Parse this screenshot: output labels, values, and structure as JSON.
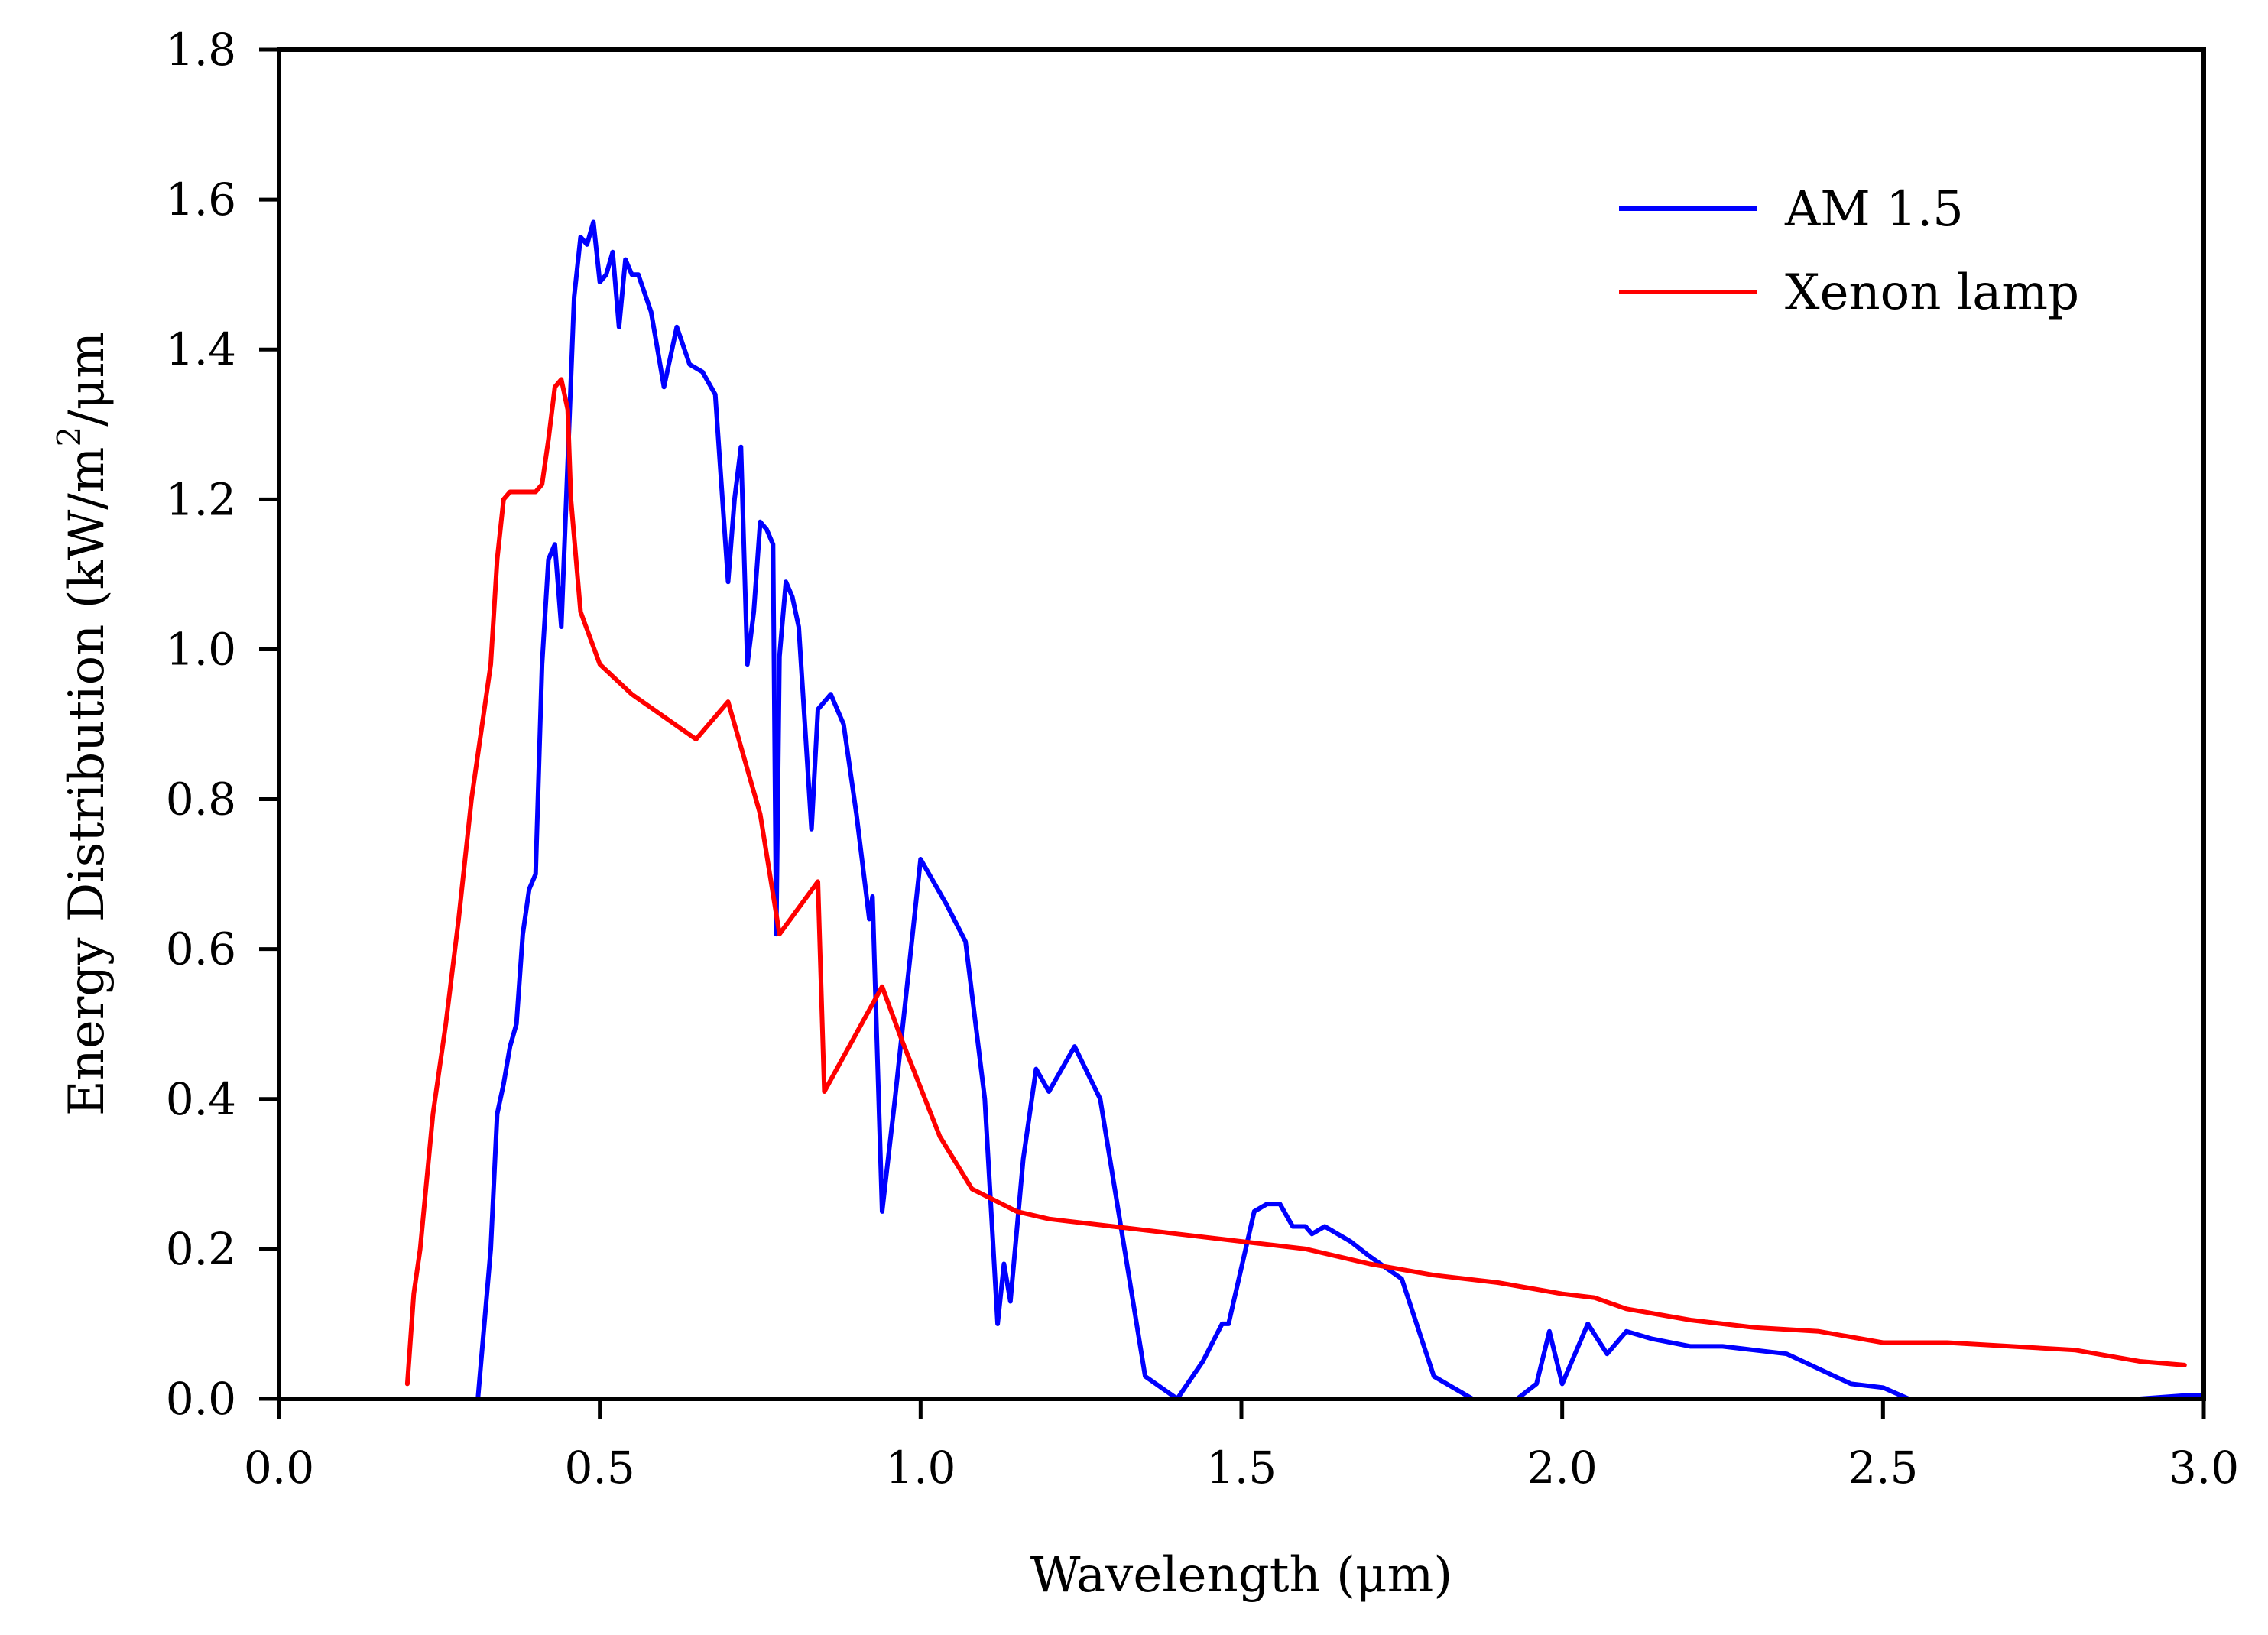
{
  "chart_data": {
    "type": "line",
    "title": "",
    "xlabel": "Wavelength (μm)",
    "ylabel": {
      "prefix": "Energy Distribution (kW/m",
      "superscript": "2",
      "suffix": "/μm"
    },
    "xlim": [
      0.0,
      3.0
    ],
    "ylim": [
      0.0,
      1.8
    ],
    "x_ticks": [
      "0.0",
      "0.5",
      "1.0",
      "1.5",
      "2.0",
      "2.5",
      "3.0"
    ],
    "y_ticks": [
      "0.0",
      "0.2",
      "0.4",
      "0.6",
      "0.8",
      "1.0",
      "1.2",
      "1.4",
      "1.6",
      "1.8"
    ],
    "grid": false,
    "legend_position": "top-right",
    "series": [
      {
        "name": "AM 1.5",
        "color": "#0000ff",
        "points": [
          [
            0.31,
            0.0
          ],
          [
            0.33,
            0.2
          ],
          [
            0.34,
            0.38
          ],
          [
            0.35,
            0.42
          ],
          [
            0.36,
            0.47
          ],
          [
            0.37,
            0.5
          ],
          [
            0.38,
            0.62
          ],
          [
            0.39,
            0.68
          ],
          [
            0.4,
            0.7
          ],
          [
            0.41,
            0.98
          ],
          [
            0.42,
            1.12
          ],
          [
            0.43,
            1.14
          ],
          [
            0.44,
            1.03
          ],
          [
            0.45,
            1.25
          ],
          [
            0.46,
            1.47
          ],
          [
            0.47,
            1.55
          ],
          [
            0.48,
            1.54
          ],
          [
            0.49,
            1.57
          ],
          [
            0.5,
            1.49
          ],
          [
            0.51,
            1.5
          ],
          [
            0.52,
            1.53
          ],
          [
            0.53,
            1.43
          ],
          [
            0.54,
            1.52
          ],
          [
            0.55,
            1.5
          ],
          [
            0.56,
            1.5
          ],
          [
            0.58,
            1.45
          ],
          [
            0.6,
            1.35
          ],
          [
            0.62,
            1.43
          ],
          [
            0.64,
            1.38
          ],
          [
            0.66,
            1.37
          ],
          [
            0.68,
            1.34
          ],
          [
            0.7,
            1.09
          ],
          [
            0.71,
            1.2
          ],
          [
            0.72,
            1.27
          ],
          [
            0.73,
            0.98
          ],
          [
            0.74,
            1.05
          ],
          [
            0.75,
            1.17
          ],
          [
            0.76,
            1.16
          ],
          [
            0.77,
            1.14
          ],
          [
            0.775,
            0.62
          ],
          [
            0.78,
            0.99
          ],
          [
            0.79,
            1.09
          ],
          [
            0.8,
            1.07
          ],
          [
            0.81,
            1.03
          ],
          [
            0.83,
            0.76
          ],
          [
            0.84,
            0.92
          ],
          [
            0.86,
            0.94
          ],
          [
            0.88,
            0.9
          ],
          [
            0.9,
            0.78
          ],
          [
            0.92,
            0.64
          ],
          [
            0.925,
            0.67
          ],
          [
            0.94,
            0.25
          ],
          [
            0.96,
            0.4
          ],
          [
            1.0,
            0.72
          ],
          [
            1.04,
            0.66
          ],
          [
            1.07,
            0.61
          ],
          [
            1.1,
            0.4
          ],
          [
            1.12,
            0.1
          ],
          [
            1.13,
            0.18
          ],
          [
            1.14,
            0.13
          ],
          [
            1.16,
            0.32
          ],
          [
            1.18,
            0.44
          ],
          [
            1.2,
            0.41
          ],
          [
            1.24,
            0.47
          ],
          [
            1.28,
            0.4
          ],
          [
            1.35,
            0.03
          ],
          [
            1.4,
            0.0
          ],
          [
            1.44,
            0.05
          ],
          [
            1.47,
            0.1
          ],
          [
            1.48,
            0.1
          ],
          [
            1.52,
            0.25
          ],
          [
            1.54,
            0.26
          ],
          [
            1.56,
            0.26
          ],
          [
            1.58,
            0.23
          ],
          [
            1.6,
            0.23
          ],
          [
            1.61,
            0.22
          ],
          [
            1.63,
            0.23
          ],
          [
            1.67,
            0.21
          ],
          [
            1.7,
            0.19
          ],
          [
            1.75,
            0.16
          ],
          [
            1.8,
            0.03
          ],
          [
            1.86,
            0.0
          ],
          [
            1.93,
            0.0
          ],
          [
            1.96,
            0.02
          ],
          [
            1.98,
            0.09
          ],
          [
            2.0,
            0.02
          ],
          [
            2.04,
            0.1
          ],
          [
            2.07,
            0.06
          ],
          [
            2.1,
            0.09
          ],
          [
            2.14,
            0.08
          ],
          [
            2.2,
            0.07
          ],
          [
            2.25,
            0.07
          ],
          [
            2.3,
            0.065
          ],
          [
            2.35,
            0.06
          ],
          [
            2.4,
            0.04
          ],
          [
            2.45,
            0.02
          ],
          [
            2.5,
            0.015
          ],
          [
            2.54,
            0.0
          ],
          [
            2.6,
            0.0
          ],
          [
            2.7,
            0.0
          ],
          [
            2.8,
            0.0
          ],
          [
            2.9,
            0.0
          ],
          [
            2.98,
            0.005
          ],
          [
            3.0,
            0.005
          ]
        ]
      },
      {
        "name": "Xenon lamp",
        "color": "#ff0000",
        "points": [
          [
            0.2,
            0.02
          ],
          [
            0.21,
            0.14
          ],
          [
            0.22,
            0.2
          ],
          [
            0.24,
            0.38
          ],
          [
            0.26,
            0.5
          ],
          [
            0.28,
            0.64
          ],
          [
            0.3,
            0.8
          ],
          [
            0.33,
            0.98
          ],
          [
            0.34,
            1.12
          ],
          [
            0.35,
            1.2
          ],
          [
            0.36,
            1.21
          ],
          [
            0.38,
            1.21
          ],
          [
            0.4,
            1.21
          ],
          [
            0.41,
            1.22
          ],
          [
            0.42,
            1.28
          ],
          [
            0.43,
            1.35
          ],
          [
            0.44,
            1.36
          ],
          [
            0.45,
            1.32
          ],
          [
            0.455,
            1.2
          ],
          [
            0.47,
            1.05
          ],
          [
            0.5,
            0.98
          ],
          [
            0.55,
            0.94
          ],
          [
            0.6,
            0.91
          ],
          [
            0.65,
            0.88
          ],
          [
            0.7,
            0.93
          ],
          [
            0.75,
            0.78
          ],
          [
            0.78,
            0.62
          ],
          [
            0.84,
            0.69
          ],
          [
            0.85,
            0.41
          ],
          [
            0.94,
            0.55
          ],
          [
            0.97,
            0.48
          ],
          [
            1.03,
            0.35
          ],
          [
            1.08,
            0.28
          ],
          [
            1.15,
            0.25
          ],
          [
            1.2,
            0.24
          ],
          [
            1.3,
            0.23
          ],
          [
            1.4,
            0.22
          ],
          [
            1.5,
            0.21
          ],
          [
            1.6,
            0.2
          ],
          [
            1.7,
            0.18
          ],
          [
            1.8,
            0.165
          ],
          [
            1.9,
            0.155
          ],
          [
            2.0,
            0.14
          ],
          [
            2.05,
            0.135
          ],
          [
            2.1,
            0.12
          ],
          [
            2.2,
            0.105
          ],
          [
            2.3,
            0.095
          ],
          [
            2.4,
            0.09
          ],
          [
            2.5,
            0.075
          ],
          [
            2.6,
            0.075
          ],
          [
            2.7,
            0.07
          ],
          [
            2.8,
            0.065
          ],
          [
            2.9,
            0.05
          ],
          [
            2.97,
            0.045
          ]
        ]
      }
    ]
  }
}
